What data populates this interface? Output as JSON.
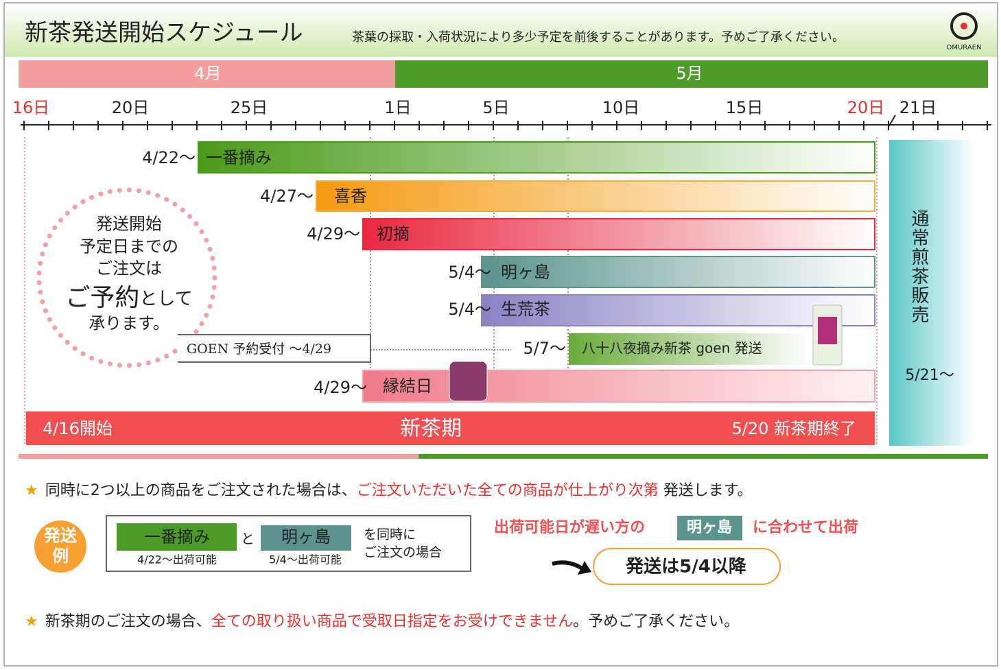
{
  "header": {
    "title": "新茶発送開始スケジュール",
    "note": "茶葉の採取・入荷状況により多少予定を前後することがあります。予めご了承ください。",
    "logo": "OMURAEN"
  },
  "months": [
    "4月",
    "5月"
  ],
  "days": [
    "16日",
    "20日",
    "25日",
    "1日",
    "5日",
    "10日",
    "15日",
    "20日",
    "21日"
  ],
  "items": [
    {
      "start": "4/22〜",
      "name": "一番摘み"
    },
    {
      "start": "4/27〜",
      "name": "喜香"
    },
    {
      "start": "4/29〜",
      "name": "初摘"
    },
    {
      "start": "5/4〜",
      "name": "明ヶ島"
    },
    {
      "start": "5/4〜",
      "name": "生荒茶"
    },
    {
      "start": "4/29〜",
      "name": "縁結日"
    }
  ],
  "goen": {
    "reservation": "GOEN 予約受付 〜4/29",
    "start": "5/7〜",
    "name": "八十八夜摘み新茶 goen 発送"
  },
  "season": {
    "start": "4/16開始",
    "name": "新茶期",
    "end": "5/20 新茶期終了"
  },
  "regular": {
    "name": "通常煎茶販売",
    "start": "5/21〜"
  },
  "circle": {
    "lines": [
      "発送開始",
      "予定日までの",
      "ご注文は"
    ],
    "big": "ご予約",
    "big_rest": "として",
    "last": "承ります。"
  },
  "notes": [
    {
      "star": "★",
      "text": "同時に2つ以上の商品をご注文された場合は、",
      "red": "ご注文いただいた全ての商品が仕上がり次第",
      "rest": " 発送します。"
    },
    {
      "star": "★",
      "text": "新茶期のご注文の場合、",
      "red": "全ての取り扱い商品で受取日指定をお受けできません",
      "rest": "。予めご了承ください。"
    }
  ],
  "example": {
    "badge": [
      "発送",
      "例"
    ],
    "item1": "一番摘み",
    "item1_note": "4/22〜出荷可能",
    "and": "と",
    "item2": "明ヶ島",
    "item2_note": "5/4〜出荷可能",
    "condition": [
      "を同時に",
      "ご注文の場合"
    ],
    "rule": "出荷可能日が遅い方の",
    "rule_item": "明ヶ島",
    "rule_rest": "に合わせて出荷",
    "result": "発送は5/4以降"
  }
}
